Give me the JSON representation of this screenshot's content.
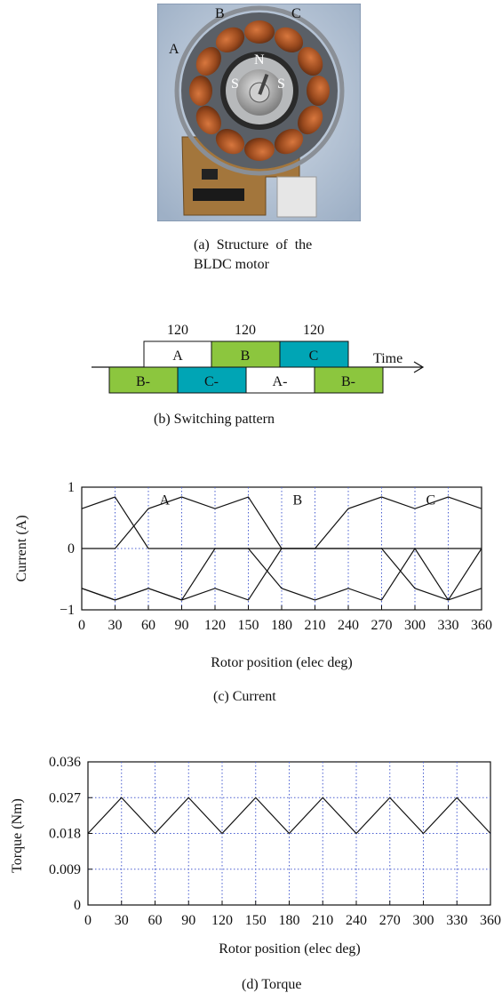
{
  "panel_a": {
    "phase_labels": [
      "A",
      "B",
      "C"
    ],
    "pole_labels": [
      "N",
      "S",
      "S"
    ],
    "caption_line1": "(a) Structure of the",
    "caption_line2": "BLDC motor"
  },
  "panel_b": {
    "durations": [
      "120",
      "120",
      "120"
    ],
    "top_blocks": [
      {
        "label": "A",
        "color": "#ffffff"
      },
      {
        "label": "B",
        "color": "#8cc63e"
      },
      {
        "label": "C",
        "color": "#00a5b5"
      }
    ],
    "bottom_blocks": [
      {
        "label": "B-",
        "color": "#8cc63e"
      },
      {
        "label": "C-",
        "color": "#00a5b5"
      },
      {
        "label": "A-",
        "color": "#ffffff"
      },
      {
        "label": "B-",
        "color": "#8cc63e"
      }
    ],
    "time_label": "Time",
    "caption": "(b) Switching pattern"
  },
  "chart_data": [
    {
      "type": "line",
      "caption": "(c) Current",
      "xlabel": "Rotor position (elec deg)",
      "ylabel": "Current (A)",
      "xlim": [
        0,
        360
      ],
      "ylim": [
        -1,
        1
      ],
      "xticks": [
        "0",
        "30",
        "60",
        "90",
        "120",
        "150",
        "180",
        "210",
        "240",
        "270",
        "300",
        "330",
        "360"
      ],
      "yticks": [
        "1",
        "0",
        "−1"
      ],
      "grid": true,
      "annotations": [
        "A",
        "B",
        "C"
      ],
      "x": [
        0,
        30,
        60,
        90,
        120,
        150,
        180,
        210,
        240,
        270,
        300,
        330,
        360
      ],
      "series": [
        {
          "values": [
            0.65,
            0.84,
            0,
            0,
            0,
            0,
            -0.65,
            -0.84,
            -0.65,
            -0.84,
            0,
            0,
            0
          ]
        },
        {
          "values": [
            0,
            0,
            0.65,
            0.84,
            0.65,
            0.84,
            0,
            0,
            0,
            0,
            -0.65,
            -0.84,
            0
          ]
        },
        {
          "values": [
            -0.65,
            -0.84,
            -0.65,
            -0.84,
            0,
            0,
            0,
            0,
            0.65,
            0.84,
            0.65,
            0.84,
            0.65
          ]
        },
        {
          "values": [
            -0.65,
            -0.84,
            -0.65,
            -0.84,
            -0.65,
            -0.84,
            0,
            0,
            0,
            0,
            0,
            -0.84,
            -0.65
          ]
        }
      ]
    },
    {
      "type": "line",
      "caption": "(d) Torque",
      "xlabel": "Rotor position (elec deg)",
      "ylabel": "Torque (Nm)",
      "xlim": [
        0,
        360
      ],
      "ylim": [
        0,
        0.036
      ],
      "xticks": [
        "0",
        "30",
        "60",
        "90",
        "120",
        "150",
        "180",
        "210",
        "240",
        "270",
        "300",
        "330",
        "360"
      ],
      "yticks": [
        "0.036",
        "0.027",
        "0.018",
        "0.009",
        "0"
      ],
      "grid": true,
      "x": [
        0,
        30,
        60,
        90,
        120,
        150,
        180,
        210,
        240,
        270,
        300,
        330,
        360
      ],
      "series": [
        {
          "values": [
            0.018,
            0.027,
            0.018,
            0.027,
            0.018,
            0.027,
            0.018,
            0.027,
            0.018,
            0.027,
            0.018,
            0.027,
            0.018
          ]
        }
      ]
    }
  ]
}
